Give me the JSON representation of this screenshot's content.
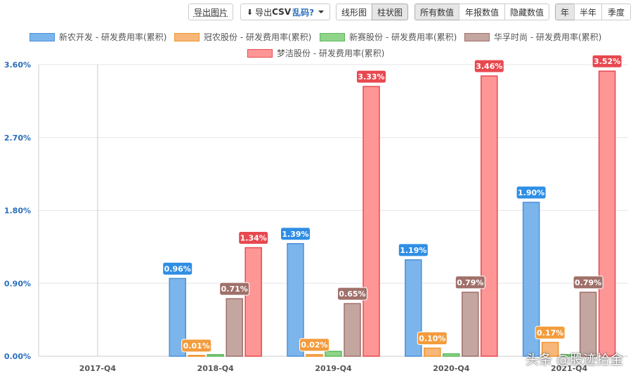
{
  "toolbar": {
    "export_image": "导出图片",
    "export_csv_prefix": "导出",
    "export_csv_strong": "CSV",
    "export_csv_link": "乱码?",
    "chart_types": [
      "线形图",
      "柱状图"
    ],
    "value_modes": [
      "所有数值",
      "年报数值",
      "隐藏数值"
    ],
    "periods": [
      "年",
      "半年",
      "季度"
    ],
    "active_chart_type": "柱状图",
    "active_value_mode": "所有数值",
    "active_period": "年"
  },
  "watermark": "头条 @股迹拾金",
  "chart_data": {
    "type": "bar",
    "categories": [
      "2017-Q4",
      "2018-Q4",
      "2019-Q4",
      "2020-Q4",
      "2021-Q4"
    ],
    "y_ticks": [
      "0.00%",
      "0.90%",
      "1.80%",
      "2.70%",
      "3.60%"
    ],
    "ylim": [
      0,
      3.6
    ],
    "legend_position": "top",
    "series": [
      {
        "name": "新农开发 - 研发费用率(累积)",
        "fill": "#7cb5ec",
        "stroke": "#4a90d9",
        "label_bg": "#2f8ee5",
        "values": [
          null,
          0.96,
          1.39,
          1.19,
          1.9
        ],
        "labels": [
          "",
          "0.96%",
          "1.39%",
          "1.19%",
          "1.90%"
        ]
      },
      {
        "name": "冠农股份 - 研发费用率(累积)",
        "fill": "#f7b77a",
        "stroke": "#f0932b",
        "label_bg": "#f39c3c",
        "values": [
          null,
          0.01,
          0.02,
          0.1,
          0.17
        ],
        "labels": [
          "",
          "0.01%",
          "0.02%",
          "0.10%",
          "0.17%"
        ]
      },
      {
        "name": "新赛股份 - 研发费用率(累积)",
        "fill": "#90d48a",
        "stroke": "#5cb85c",
        "label_bg": "#5cb85c",
        "values": [
          null,
          0.02,
          0.06,
          0.03,
          0.02
        ],
        "labels": [
          "",
          "",
          "",
          "",
          ""
        ]
      },
      {
        "name": "华孚时尚 - 研发费用率(累积)",
        "fill": "#c4a6a0",
        "stroke": "#a0706a",
        "label_bg": "#a0706a",
        "values": [
          null,
          0.71,
          0.65,
          0.79,
          0.79
        ],
        "labels": [
          "",
          "0.71%",
          "0.65%",
          "0.79%",
          "0.79%"
        ]
      },
      {
        "name": "梦洁股份 - 研发费用率(累积)",
        "fill": "#ff9696",
        "stroke": "#e8484f",
        "label_bg": "#e8484f",
        "values": [
          null,
          1.34,
          3.33,
          3.46,
          3.52
        ],
        "labels": [
          "",
          "1.34%",
          "3.33%",
          "3.46%",
          "3.52%"
        ]
      }
    ]
  }
}
